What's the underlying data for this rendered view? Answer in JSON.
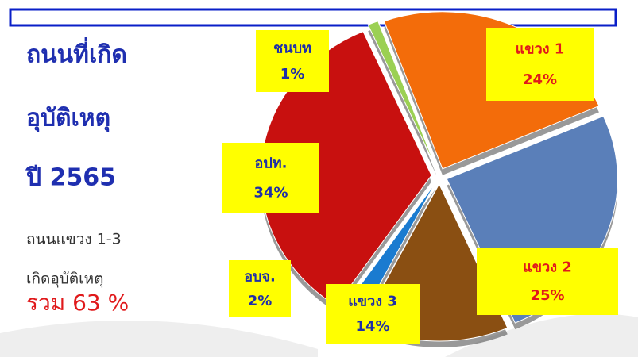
{
  "chart_data": {
    "type": "pie",
    "title": [
      "ถนนที่เกิด",
      "อุบัติเหตุ",
      "ปี 2565"
    ],
    "annotations": [
      "ถนนแขวง 1-3",
      "เกิดอุบัติเหตุ",
      "รวม 63 %"
    ],
    "categories": [
      "แขวง 1",
      "แขวง 2",
      "แขวง 3",
      "อบจ.",
      "อปท.",
      "ชนบท"
    ],
    "values": [
      24,
      25,
      14,
      2,
      34,
      1
    ],
    "value_labels": [
      "24%",
      "25%",
      "14%",
      "2%",
      "34%",
      "1%"
    ],
    "colors": [
      "#f36c0a",
      "#5a7fb9",
      "#8a4f12",
      "#1a7bd0",
      "#c8100f",
      "#9bd053"
    ],
    "label_colors": [
      "#e0191b",
      "#e0191b",
      "#1f2fa8",
      "#1f2fa8",
      "#1f2fa8",
      "#1f2fa8"
    ]
  }
}
